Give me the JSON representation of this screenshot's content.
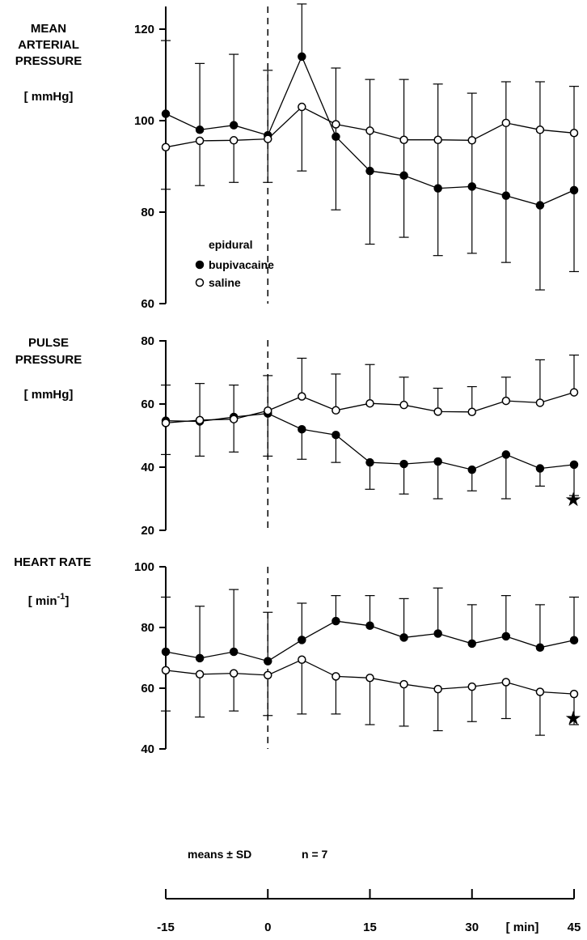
{
  "chart_data": [
    {
      "type": "line",
      "id": "map",
      "ylabel_lines": [
        "MEAN",
        "ARTERIAL",
        "PRESSURE"
      ],
      "unit": "[ mmHg]",
      "ylim": [
        60,
        125
      ],
      "yticks": [
        60,
        80,
        100,
        120
      ],
      "x": [
        -15,
        -10,
        -5,
        0,
        5,
        10,
        15,
        20,
        25,
        30,
        35,
        40,
        45
      ],
      "legend": {
        "title": "epidural",
        "items": [
          "bupivacaine",
          "saline"
        ]
      },
      "series": [
        {
          "name": "bupivacaine",
          "marker": "filled",
          "values": [
            101.5,
            98,
            99,
            96.8,
            114,
            96.5,
            89,
            88,
            85.2,
            85.6,
            83.6,
            81.5,
            84.8
          ],
          "sd_upper": [
            117.5,
            112.5,
            114.5,
            111,
            125.5,
            111.5,
            109,
            109,
            108,
            106,
            108.5,
            108.5,
            107.5
          ],
          "sd_lower": [
            null,
            null,
            null,
            null,
            null,
            80.5,
            73,
            74.5,
            70.5,
            71,
            69,
            63,
            67
          ]
        },
        {
          "name": "saline",
          "marker": "open",
          "values": [
            94.2,
            95.6,
            95.7,
            96,
            103,
            99.2,
            97.8,
            95.8,
            95.8,
            95.7,
            99.5,
            98,
            97.3
          ],
          "sd_upper": [
            null,
            null,
            null,
            null,
            null,
            null,
            null,
            null,
            null,
            null,
            null,
            null,
            null
          ],
          "sd_lower": [
            85,
            85.8,
            86.5,
            86.5,
            89,
            null,
            null,
            null,
            null,
            null,
            null,
            null,
            null
          ]
        }
      ]
    },
    {
      "type": "line",
      "id": "pp",
      "ylabel_lines": [
        "PULSE",
        "PRESSURE"
      ],
      "unit": "[ mmHg]",
      "ylim": [
        20,
        80
      ],
      "yticks": [
        20,
        40,
        60,
        80
      ],
      "x": [
        -15,
        -10,
        -5,
        0,
        5,
        10,
        15,
        20,
        25,
        30,
        35,
        40,
        45
      ],
      "annotation": "★",
      "series": [
        {
          "name": "bupivacaine",
          "marker": "filled",
          "values": [
            54.7,
            54.5,
            55.9,
            57,
            52,
            50.2,
            41.5,
            41,
            41.8,
            39.2,
            44,
            39.6,
            40.8
          ],
          "sd_upper": [
            null,
            null,
            null,
            null,
            null,
            null,
            null,
            null,
            null,
            null,
            null,
            null,
            null
          ],
          "sd_lower": [
            44,
            43.5,
            44.8,
            43.5,
            42.5,
            41.5,
            33,
            31.5,
            30,
            32.5,
            30,
            34,
            31
          ]
        },
        {
          "name": "saline",
          "marker": "open",
          "values": [
            54,
            54.9,
            55.2,
            57.9,
            62.4,
            58,
            60.2,
            59.7,
            57.6,
            57.5,
            61,
            60.4,
            63.7
          ],
          "sd_upper": [
            66,
            66.5,
            66,
            69,
            74.5,
            69.5,
            72.5,
            68.5,
            65,
            65.5,
            68.5,
            74,
            75.5
          ],
          "sd_lower": [
            null,
            null,
            null,
            null,
            null,
            null,
            null,
            null,
            null,
            null,
            null,
            null,
            null
          ]
        }
      ]
    },
    {
      "type": "line",
      "id": "hr",
      "ylabel_lines": [
        "HEART RATE"
      ],
      "unit_base": "[ min",
      "unit_sup": "-1",
      "unit_end": "]",
      "ylim": [
        40,
        100
      ],
      "yticks": [
        40,
        60,
        80,
        100
      ],
      "x": [
        -15,
        -10,
        -5,
        0,
        5,
        10,
        15,
        20,
        25,
        30,
        35,
        40,
        45
      ],
      "xticks": [
        -15,
        0,
        15,
        30,
        45
      ],
      "xunit": "[ min]",
      "annotation": "★",
      "notes": [
        "means ± SD",
        "n = 7"
      ],
      "series": [
        {
          "name": "bupivacaine",
          "marker": "filled",
          "values": [
            72,
            69.9,
            72,
            68.9,
            75.9,
            82.1,
            80.6,
            76.7,
            78,
            74.7,
            77.1,
            73.4,
            75.8
          ],
          "sd_upper": [
            90,
            87,
            92.5,
            85,
            88,
            90.5,
            90.5,
            89.5,
            93,
            87.5,
            90.5,
            87.5,
            90
          ],
          "sd_lower": [
            null,
            null,
            null,
            null,
            null,
            null,
            null,
            null,
            null,
            null,
            null,
            null,
            null
          ]
        },
        {
          "name": "saline",
          "marker": "open",
          "values": [
            65.9,
            64.6,
            64.9,
            64.3,
            69.4,
            63.9,
            63.4,
            61.3,
            59.7,
            60.5,
            62,
            58.8,
            58.1
          ],
          "sd_upper": [
            null,
            null,
            null,
            null,
            null,
            null,
            null,
            null,
            null,
            null,
            null,
            null,
            null
          ],
          "sd_lower": [
            52.5,
            50.5,
            52.5,
            51,
            51.5,
            51.5,
            48,
            47.5,
            46,
            49,
            50,
            44.5,
            48
          ]
        }
      ]
    }
  ]
}
